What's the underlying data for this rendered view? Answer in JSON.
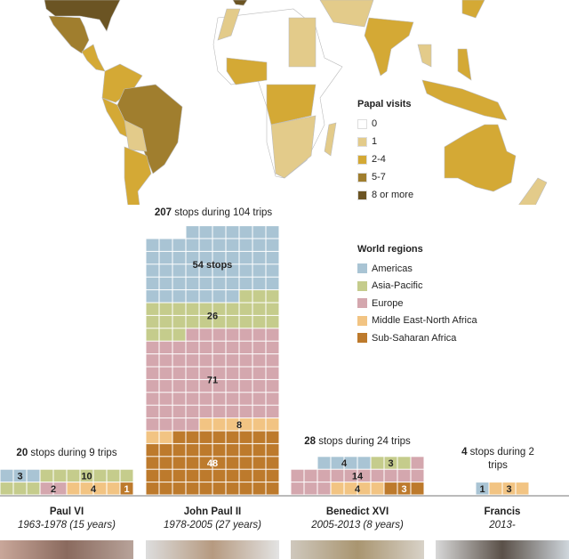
{
  "map_legend": {
    "title": "Papal visits",
    "items": [
      {
        "label": "0",
        "color": "#ffffff"
      },
      {
        "label": "1",
        "color": "#e3cb8a"
      },
      {
        "label": "2-4",
        "color": "#d4a935"
      },
      {
        "label": "5-7",
        "color": "#a07e2e"
      },
      {
        "label": "8 or more",
        "color": "#6b5423"
      }
    ]
  },
  "chart_data": {
    "type": "waffle",
    "legend_title": "World regions",
    "regions": [
      {
        "name": "Americas",
        "color": "#a9c4d4"
      },
      {
        "name": "Asia-Pacific",
        "color": "#c5cc8c"
      },
      {
        "name": "Europe",
        "color": "#d4a7ae"
      },
      {
        "name": "Middle East-North Africa",
        "color": "#f2c483"
      },
      {
        "name": "Sub-Saharan Africa",
        "color": "#bd7a2c"
      }
    ],
    "popes": [
      {
        "name": "Paul VI",
        "years": "1963-1978 (15 years)",
        "stops": "20",
        "caption_rest": " stops during 9 trips",
        "values": {
          "Americas": 3,
          "Asia-Pacific": 10,
          "Europe": 2,
          "Middle East-North Africa": 4,
          "Sub-Saharan Africa": 1
        },
        "labels": {
          "Americas": "3",
          "Asia-Pacific": "10",
          "Europe": "2",
          "Middle East-North Africa": "4",
          "Sub-Saharan Africa": "1"
        }
      },
      {
        "name": "John Paul II",
        "years": "1978-2005 (27 years)",
        "stops": "207",
        "caption_rest": " stops during 104 trips",
        "values": {
          "Americas": 54,
          "Asia-Pacific": 26,
          "Europe": 71,
          "Middle East-North Africa": 8,
          "Sub-Saharan Africa": 48
        },
        "labels": {
          "Americas": "54 stops",
          "Asia-Pacific": "26",
          "Europe": "71",
          "Middle East-North Africa": "8",
          "Sub-Saharan Africa": "48"
        }
      },
      {
        "name": "Benedict XVI",
        "years": "2005-2013 (8 years)",
        "stops": "28",
        "caption_rest": " stops during 24 trips",
        "values": {
          "Americas": 4,
          "Asia-Pacific": 3,
          "Europe": 14,
          "Middle East-North Africa": 4,
          "Sub-Saharan Africa": 3
        },
        "labels": {
          "Americas": "4",
          "Asia-Pacific": "3",
          "Europe": "14",
          "Middle East-North Africa": "4",
          "Sub-Saharan Africa": "3"
        }
      },
      {
        "name": "Francis",
        "years": "2013-",
        "stops": "4",
        "caption_rest": " stops during 2 trips",
        "values": {
          "Americas": 1,
          "Asia-Pacific": 0,
          "Europe": 0,
          "Middle East-North Africa": 3,
          "Sub-Saharan Africa": 0
        },
        "labels": {
          "Americas": "1",
          "Middle East-North Africa": "3"
        }
      }
    ]
  }
}
